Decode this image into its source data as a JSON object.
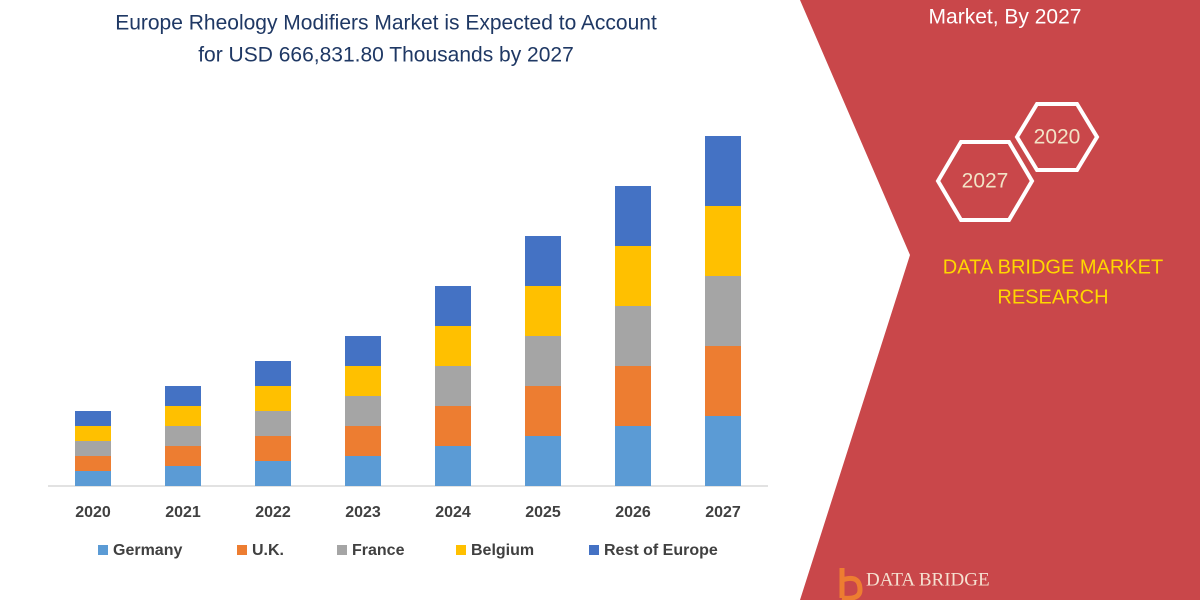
{
  "chart_data": {
    "type": "stacked_bar",
    "title": [
      "Europe Rheology Modifiers Market is Expected to Account",
      "for USD 666,831.80 Thousands by 2027"
    ],
    "categories": [
      "2020",
      "2021",
      "2022",
      "2023",
      "2024",
      "2025",
      "2026",
      "2027"
    ],
    "series": [
      {
        "name": "Germany",
        "color": "#5b9bd5",
        "values": [
          15,
          20,
          25,
          30,
          40,
          50,
          60,
          70
        ]
      },
      {
        "name": "U.K.",
        "color": "#ed7d31",
        "values": [
          15,
          20,
          25,
          30,
          40,
          50,
          60,
          70
        ]
      },
      {
        "name": "France",
        "color": "#a5a5a5",
        "values": [
          15,
          20,
          25,
          30,
          40,
          50,
          60,
          70
        ]
      },
      {
        "name": "Belgium",
        "color": "#ffc000",
        "values": [
          15,
          20,
          25,
          30,
          40,
          50,
          60,
          70
        ]
      },
      {
        "name": "Rest of Europe",
        "color": "#4472c4",
        "values": [
          15,
          20,
          25,
          30,
          40,
          50,
          60,
          70
        ]
      }
    ],
    "ylim": [
      0,
      360
    ]
  },
  "panel": {
    "heading": "Market, By 2027",
    "hexagons": [
      "2020",
      "2027"
    ],
    "brand": [
      "DATA BRIDGE MARKET",
      "RESEARCH"
    ],
    "logo": "DATA BRIDGE"
  }
}
